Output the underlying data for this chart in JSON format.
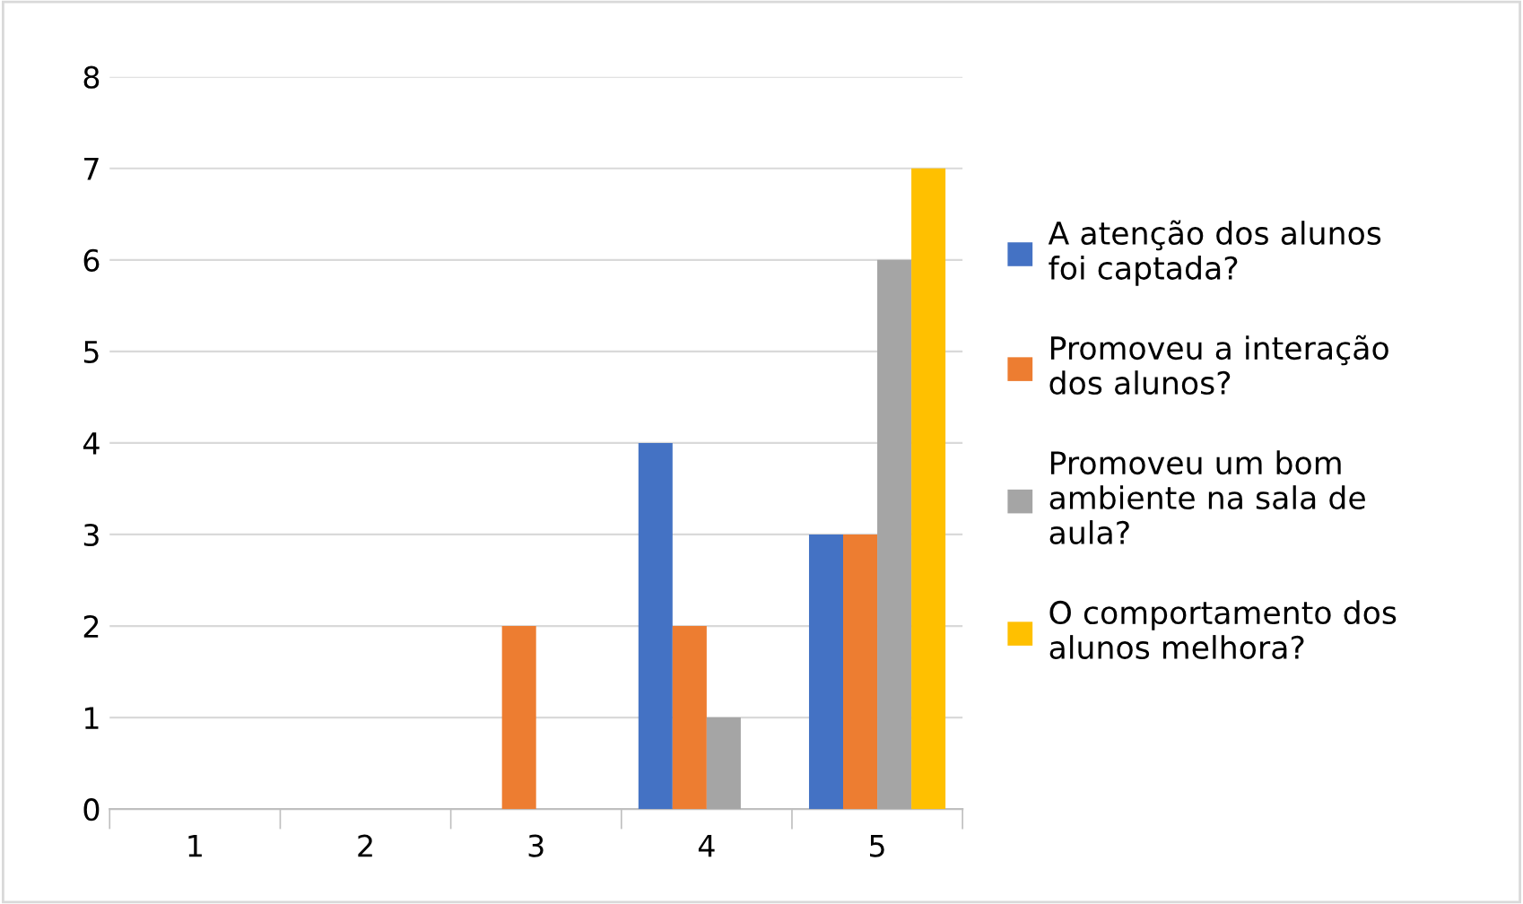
{
  "chart_data": {
    "type": "bar",
    "categories": [
      "1",
      "2",
      "3",
      "4",
      "5"
    ],
    "series": [
      {
        "name": "A atenção dos alunos foi captada?",
        "color": "#4472c4",
        "values": [
          0,
          0,
          0,
          4,
          3
        ]
      },
      {
        "name": "Promoveu a interação dos alunos?",
        "color": "#ed7d31",
        "values": [
          0,
          0,
          2,
          2,
          3
        ]
      },
      {
        "name": "Promoveu um bom ambiente na sala de aula?",
        "color": "#a5a5a5",
        "values": [
          0,
          0,
          0,
          1,
          6
        ]
      },
      {
        "name": "O comportamento dos alunos melhora?",
        "color": "#ffc000",
        "values": [
          0,
          0,
          0,
          0,
          7
        ]
      }
    ],
    "ylim": [
      0,
      8
    ],
    "yticks": [
      0,
      1,
      2,
      3,
      4,
      5,
      6,
      7,
      8
    ],
    "grid": "y",
    "legend": "right"
  }
}
